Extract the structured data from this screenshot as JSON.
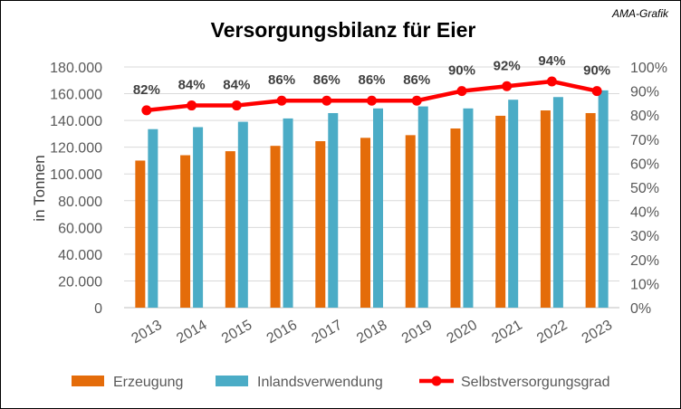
{
  "chart_data": {
    "type": "bar",
    "title": "Versorgungsbilanz für Eier",
    "source_note": "AMA-Grafik",
    "ylabel": "in Tonnen",
    "categories": [
      "2013",
      "2014",
      "2015",
      "2016",
      "2017",
      "2018",
      "2019",
      "2020",
      "2021",
      "2022",
      "2023"
    ],
    "y_left": {
      "min": 0,
      "max": 180000,
      "step": 20000,
      "tick_labels": [
        "0",
        "20.000",
        "40.000",
        "60.000",
        "80.000",
        "100.000",
        "120.000",
        "140.000",
        "160.000",
        "180.000"
      ]
    },
    "y_right": {
      "min": 0,
      "max": 100,
      "step": 10,
      "tick_labels": [
        "0%",
        "10%",
        "20%",
        "30%",
        "40%",
        "50%",
        "60%",
        "70%",
        "80%",
        "90%",
        "100%"
      ]
    },
    "series": [
      {
        "name": "Erzeugung",
        "type": "bar",
        "axis": "left",
        "color": "#E46C0A",
        "values": [
          110000,
          114000,
          117000,
          121000,
          124500,
          127000,
          129000,
          134000,
          143500,
          147500,
          145500
        ]
      },
      {
        "name": "Inlandsverwendung",
        "type": "bar",
        "axis": "left",
        "color": "#4BACC6",
        "values": [
          133500,
          135000,
          139000,
          141500,
          145500,
          149000,
          150500,
          149000,
          155500,
          157500,
          162500
        ]
      },
      {
        "name": "Selbstversorgungsgrad",
        "type": "line",
        "axis": "right",
        "color": "#FF0000",
        "values": [
          82,
          84,
          84,
          86,
          86,
          86,
          86,
          90,
          92,
          94,
          90
        ],
        "labels": [
          "82%",
          "84%",
          "84%",
          "86%",
          "86%",
          "86%",
          "86%",
          "90%",
          "92%",
          "94%",
          "90%"
        ]
      }
    ],
    "legend_position": "bottom",
    "grid": true
  }
}
